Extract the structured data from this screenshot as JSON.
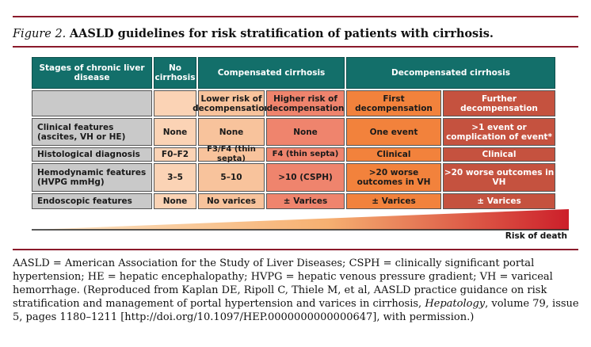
{
  "caption": {
    "label": "Figure 2.",
    "title": "AASLD guidelines for risk stratification of patients with cirrhosis."
  },
  "table": {
    "headers": {
      "stages": "Stages of chronic liver disease",
      "no_cirrhosis": "No cirrhosis",
      "compensated": "Compensated cirrhosis",
      "decompensated": "Decompensated cirrhosis"
    },
    "subheaders": {
      "lower_risk": "Lower risk of decompensation",
      "higher_risk": "Higher risk of decompensation",
      "first": "First decompensation",
      "further": "Further decompensation"
    },
    "rows": [
      {
        "label": "Clinical features (ascites, VH or HE)",
        "no_cirrhosis": "None",
        "lower_risk": "None",
        "higher_risk": "None",
        "first": "One event",
        "further": ">1 event or complication of event*"
      },
      {
        "label": "Histological diagnosis",
        "no_cirrhosis": "F0–F2",
        "lower_risk": "F3/F4 (thin septa)",
        "higher_risk": "F4 (thin septa)",
        "first": "Clinical",
        "further": "Clinical"
      },
      {
        "label": "Hemodynamic features (HVPG mmHg)",
        "no_cirrhosis": "3–5",
        "lower_risk": "5–10",
        "higher_risk": ">10 (CSPH)",
        "first": ">20 worse outcomes in VH",
        "further": ">20 worse outcomes in VH"
      },
      {
        "label": "Endoscopic features",
        "no_cirrhosis": "None",
        "lower_risk": "No varices",
        "higher_risk": "± Varices",
        "first": "± Varices",
        "further": "± Varices"
      }
    ]
  },
  "risk_label": "Risk of death",
  "footnote": {
    "part1": "AASLD = American Association for the Study of Liver Diseases; CSPH = clinically significant portal hypertension; HE = hepatic encephalopathy; HVPG = hepatic venous pressure gradient; VH = variceal hemorrhage. (Reproduced from Kaplan DE, Ripoll C, Thiele M, et al, AASLD practice guidance on risk stratification and management of portal hypertension and varices in cirrhosis, ",
    "journal": "Hepatology",
    "part2": ", volume 79, issue 5, pages 1180–1211 [http://doi.org/10.1097/HEP.0000000000000647], with permission.)"
  },
  "colors": {
    "rule": "#8b1a2b",
    "header_teal": "#136f6a",
    "stage_gray": "#c9c9c9",
    "peach_light": "#fbd3b5",
    "peach": "#f8c39c",
    "salmon": "#ef846d",
    "orange": "#f2823c",
    "rust": "#c5523f",
    "wedge_end": "#cc1f2a"
  }
}
